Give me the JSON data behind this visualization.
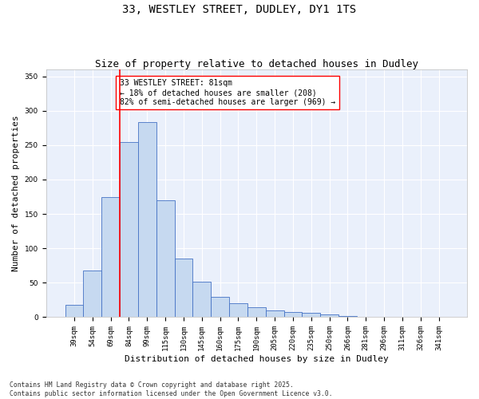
{
  "title_line1": "33, WESTLEY STREET, DUDLEY, DY1 1TS",
  "title_line2": "Size of property relative to detached houses in Dudley",
  "xlabel": "Distribution of detached houses by size in Dudley",
  "ylabel": "Number of detached properties",
  "categories": [
    "39sqm",
    "54sqm",
    "69sqm",
    "84sqm",
    "99sqm",
    "115sqm",
    "130sqm",
    "145sqm",
    "160sqm",
    "175sqm",
    "190sqm",
    "205sqm",
    "220sqm",
    "235sqm",
    "250sqm",
    "266sqm",
    "281sqm",
    "296sqm",
    "311sqm",
    "326sqm",
    "341sqm"
  ],
  "values": [
    18,
    68,
    175,
    255,
    283,
    170,
    85,
    52,
    30,
    20,
    15,
    10,
    8,
    6,
    4,
    2,
    1,
    1,
    0,
    0,
    0
  ],
  "bar_color": "#c6d9f0",
  "bar_edge_color": "#4472c4",
  "vline_color": "red",
  "vline_position": 2.5,
  "annotation_text": "33 WESTLEY STREET: 81sqm\n← 18% of detached houses are smaller (208)\n82% of semi-detached houses are larger (969) →",
  "annotation_box_edgecolor": "red",
  "annotation_facecolor": "white",
  "background_color": "#eaf0fb",
  "grid_color": "white",
  "ylim": [
    0,
    360
  ],
  "yticks": [
    0,
    50,
    100,
    150,
    200,
    250,
    300,
    350
  ],
  "footnote": "Contains HM Land Registry data © Crown copyright and database right 2025.\nContains public sector information licensed under the Open Government Licence v3.0.",
  "title_fontsize": 10,
  "subtitle_fontsize": 9,
  "axis_label_fontsize": 8,
  "tick_fontsize": 6.5,
  "annotation_fontsize": 7,
  "ylabel_full": "Number of detached properties"
}
